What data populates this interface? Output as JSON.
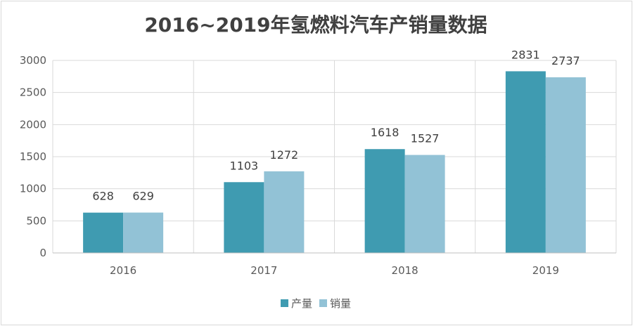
{
  "chart_data": {
    "type": "bar",
    "title": "2016~2019年氢燃料汽车产销量数据",
    "categories": [
      "2016",
      "2017",
      "2018",
      "2019"
    ],
    "series": [
      {
        "name": "产量",
        "values": [
          628,
          1103,
          1618,
          2831
        ],
        "color": "#3f9bb1"
      },
      {
        "name": "销量",
        "values": [
          629,
          1272,
          1527,
          2737
        ],
        "color": "#92c2d6"
      }
    ],
    "yticks": [
      "0",
      "500",
      "1000",
      "1500",
      "2000",
      "2500",
      "3000"
    ],
    "ylim": [
      0,
      3000
    ],
    "grid": true,
    "legend_position": "bottom"
  }
}
